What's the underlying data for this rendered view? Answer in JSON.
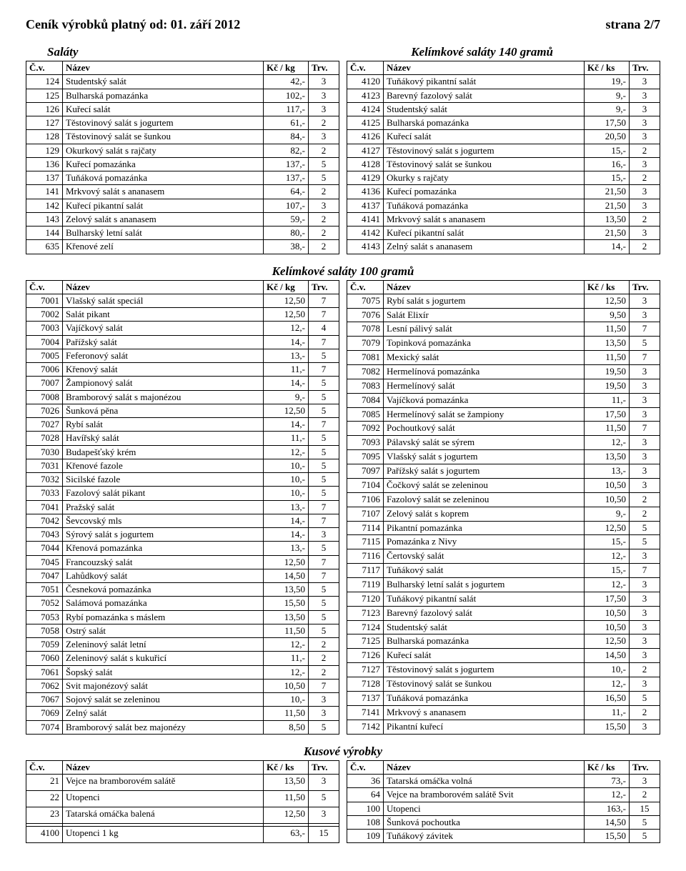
{
  "header": {
    "title": "Ceník výrobků platný od:  01. září 2012",
    "page": "strana 2/7"
  },
  "section1": {
    "left_title": "Saláty",
    "right_title": "Kelímkové saláty 140 gramů",
    "left_headers": {
      "cv": "Č.v.",
      "name": "Název",
      "price": "Kč /  kg",
      "trv": "Trv."
    },
    "right_headers": {
      "cv": "Č.v.",
      "name": "Název",
      "price": "Kč / ks",
      "trv": "Trv."
    },
    "left_rows": [
      [
        "124",
        "Studentský salát",
        "42,-",
        "3"
      ],
      [
        "125",
        "Bulharská pomazánka",
        "102,-",
        "3"
      ],
      [
        "126",
        "Kuřecí salát",
        "117,-",
        "3"
      ],
      [
        "127",
        "Těstovinový salát s jogurtem",
        "61,-",
        "2"
      ],
      [
        "128",
        "Těstovinový salát se šunkou",
        "84,-",
        "3"
      ],
      [
        "129",
        "Okurkový salát s rajčaty",
        "82,-",
        "2"
      ],
      [
        "136",
        "Kuřecí pomazánka",
        "137,-",
        "5"
      ],
      [
        "137",
        "Tuňáková pomazánka",
        "137,-",
        "5"
      ],
      [
        "141",
        "Mrkvový salát s ananasem",
        "64,-",
        "2"
      ],
      [
        "142",
        "Kuřecí pikantní salát",
        "107,-",
        "3"
      ],
      [
        "143",
        "Zelový salát s ananasem",
        "59,-",
        "2"
      ],
      [
        "144",
        "Bulharský letní salát",
        "80,-",
        "2"
      ],
      [
        "635",
        "Křenové zelí",
        "38,-",
        "2"
      ]
    ],
    "right_rows": [
      [
        "4120",
        "Tuňákový pikantní salát",
        "19,-",
        "3"
      ],
      [
        "4123",
        "Barevný fazolový salát",
        "9,-",
        "3"
      ],
      [
        "4124",
        "Studentský salát",
        "9,-",
        "3"
      ],
      [
        "4125",
        "Bulharská pomazánka",
        "17,50",
        "3"
      ],
      [
        "4126",
        "Kuřecí salát",
        "20,50",
        "3"
      ],
      [
        "4127",
        "Těstovinový salát s jogurtem",
        "15,-",
        "2"
      ],
      [
        "4128",
        "Těstovinový salát se šunkou",
        "16,-",
        "3"
      ],
      [
        "4129",
        "Okurky s rajčaty",
        "15,-",
        "2"
      ],
      [
        "4136",
        "Kuřecí pomazánka",
        "21,50",
        "3"
      ],
      [
        "4137",
        "Tuňáková pomazánka",
        "21,50",
        "3"
      ],
      [
        "4141",
        "Mrkvový salát s ananasem",
        "13,50",
        "2"
      ],
      [
        "4142",
        "Kuřecí pikantní salát",
        "21,50",
        "3"
      ],
      [
        "4143",
        "Zelný salát s ananasem",
        "14,-",
        "2"
      ]
    ]
  },
  "section2": {
    "title": "Kelímkové saláty 100 gramů",
    "left_headers": {
      "cv": "Č.v.",
      "name": "Název",
      "price": "Kč /  kg",
      "trv": "Trv."
    },
    "right_headers": {
      "cv": "Č.v.",
      "name": "Název",
      "price": "Kč / ks",
      "trv": "Trv."
    },
    "left_rows": [
      [
        "7001",
        "Vlašský salát speciál",
        "12,50",
        "7"
      ],
      [
        "7002",
        "Salát pikant",
        "12,50",
        "7"
      ],
      [
        "7003",
        "Vajíčkový salát",
        "12,-",
        "4"
      ],
      [
        "7004",
        "Pařížský salát",
        "14,-",
        "7"
      ],
      [
        "7005",
        "Feferonový salát",
        "13,-",
        "5"
      ],
      [
        "7006",
        "Křenový salát",
        "11,-",
        "7"
      ],
      [
        "7007",
        "Žampionový salát",
        "14,-",
        "5"
      ],
      [
        "7008",
        "Bramborový salát s majonézou",
        "9,-",
        "5"
      ],
      [
        "7026",
        "Šunková pěna",
        "12,50",
        "5"
      ],
      [
        "7027",
        "Rybí salát",
        "14,-",
        "7"
      ],
      [
        "7028",
        "Havířský salát",
        "11,-",
        "5"
      ],
      [
        "7030",
        "Budapešťský krém",
        "12,-",
        "5"
      ],
      [
        "7031",
        "Křenové fazole",
        "10,-",
        "5"
      ],
      [
        "7032",
        "Sicilské fazole",
        "10,-",
        "5"
      ],
      [
        "7033",
        "Fazolový salát pikant",
        "10,-",
        "5"
      ],
      [
        "7041",
        "Pražský salát",
        "13,-",
        "7"
      ],
      [
        "7042",
        "Ševcovský mls",
        "14,-",
        "7"
      ],
      [
        "7043",
        "Sýrový salát s jogurtem",
        "14,-",
        "3"
      ],
      [
        "7044",
        "Křenová pomazánka",
        "13,-",
        "5"
      ],
      [
        "7045",
        "Francouzský salát",
        "12,50",
        "7"
      ],
      [
        "7047",
        "Lahůdkový salát",
        "14,50",
        "7"
      ],
      [
        "7051",
        "Česneková pomazánka",
        "13,50",
        "5"
      ],
      [
        "7052",
        "Salámová pomazánka",
        "15,50",
        "5"
      ],
      [
        "7053",
        "Rybí pomazánka s máslem",
        "13,50",
        "5"
      ],
      [
        "7058",
        "Ostrý salát",
        "11,50",
        "5"
      ],
      [
        "7059",
        "Zeleninový salát letní",
        "12,-",
        "2"
      ],
      [
        "7060",
        "Zeleninový salát s kukuřicí",
        "11,-",
        "2"
      ],
      [
        "7061",
        "Šopský salát",
        "12,-",
        "2"
      ],
      [
        "7062",
        "Svit majonézový salát",
        "10,50",
        "7"
      ],
      [
        "7067",
        "Sojový salát se zeleninou",
        "10,-",
        "3"
      ],
      [
        "7069",
        "Zelný salát",
        "11,50",
        "3"
      ],
      [
        "7074",
        "Bramborový salát bez majonézy",
        "8,50",
        "5"
      ]
    ],
    "right_rows": [
      [
        "7075",
        "Rybí salát s jogurtem",
        "12,50",
        "3"
      ],
      [
        "7076",
        "Salát Elixír",
        "9,50",
        "3"
      ],
      [
        "7078",
        "Lesní pálivý salát",
        "11,50",
        "7"
      ],
      [
        "7079",
        "Topinková pomazánka",
        "13,50",
        "5"
      ],
      [
        "7081",
        "Mexický salát",
        "11,50",
        "7"
      ],
      [
        "7082",
        "Hermelínová pomazánka",
        "19,50",
        "3"
      ],
      [
        "7083",
        "Hermelínový salát",
        "19,50",
        "3"
      ],
      [
        "7084",
        "Vajíčková pomazánka",
        "11,-",
        "3"
      ],
      [
        "7085",
        "Hermelínový salát se žampiony",
        "17,50",
        "3"
      ],
      [
        "7092",
        "Pochoutkový salát",
        "11,50",
        "7"
      ],
      [
        "7093",
        "Pálavský salát se sýrem",
        "12,-",
        "3"
      ],
      [
        "7095",
        "Vlašský salát s jogurtem",
        "13,50",
        "3"
      ],
      [
        "7097",
        "Pařížský salát s jogurtem",
        "13,-",
        "3"
      ],
      [
        "7104",
        "Čočkový salát se zeleninou",
        "10,50",
        "3"
      ],
      [
        "7106",
        "Fazolový salát se zeleninou",
        "10,50",
        "2"
      ],
      [
        "7107",
        "Zelový salát s koprem",
        "9,-",
        "2"
      ],
      [
        "7114",
        "Pikantní pomazánka",
        "12,50",
        "5"
      ],
      [
        "7115",
        "Pomazánka z Nivy",
        "15,-",
        "5"
      ],
      [
        "7116",
        "Čertovský salát",
        "12,-",
        "3"
      ],
      [
        "7117",
        "Tuňákový salát",
        "15,-",
        "7"
      ],
      [
        "7119",
        "Bulharský letní salát s jogurtem",
        "12,-",
        "3"
      ],
      [
        "7120",
        "Tuňákový pikantní salát",
        "17,50",
        "3"
      ],
      [
        "7123",
        "Barevný fazolový salát",
        "10,50",
        "3"
      ],
      [
        "7124",
        "Studentský salát",
        "10,50",
        "3"
      ],
      [
        "7125",
        "Bulharská pomazánka",
        "12,50",
        "3"
      ],
      [
        "7126",
        "Kuřecí salát",
        "14,50",
        "3"
      ],
      [
        "7127",
        "Těstovinový salát s jogurtem",
        "10,-",
        "2"
      ],
      [
        "7128",
        "Těstovinový salát se šunkou",
        "12,-",
        "3"
      ],
      [
        "7137",
        "Tuňáková pomazánka",
        "16,50",
        "5"
      ],
      [
        "7141",
        "Mrkvový s ananasem",
        "11,-",
        "2"
      ],
      [
        "7142",
        "Pikantní kuřecí",
        "15,50",
        "3"
      ]
    ]
  },
  "section3": {
    "title": "Kusové výrobky",
    "left_headers": {
      "cv": "Č.v.",
      "name": "Název",
      "price": "Kč /  ks",
      "trv": "Trv."
    },
    "right_headers": {
      "cv": "Č.v.",
      "name": "Název",
      "price": "Kč / ks",
      "trv": "Trv."
    },
    "left_rows": [
      [
        "21",
        "Vejce na bramborovém salátě",
        "13,50",
        "3"
      ],
      [
        "22",
        "Utopenci",
        "11,50",
        "5"
      ],
      [
        "23",
        "Tatarská omáčka balená",
        "12,50",
        "3"
      ],
      [
        "",
        "",
        "",
        ""
      ],
      [
        "4100",
        "Utopenci 1 kg",
        "63,-",
        "15"
      ]
    ],
    "right_rows": [
      [
        "36",
        "Tatarská omáčka volná",
        "73,-",
        "3"
      ],
      [
        "64",
        "Vejce na bramborovém salátě Svit",
        "12,-",
        "2"
      ],
      [
        "100",
        "Utopenci",
        "163,-",
        "15"
      ],
      [
        "108",
        "Šunková pochoutka",
        "14,50",
        "5"
      ],
      [
        "109",
        "Tuňákový závitek",
        "15,50",
        "5"
      ]
    ]
  }
}
